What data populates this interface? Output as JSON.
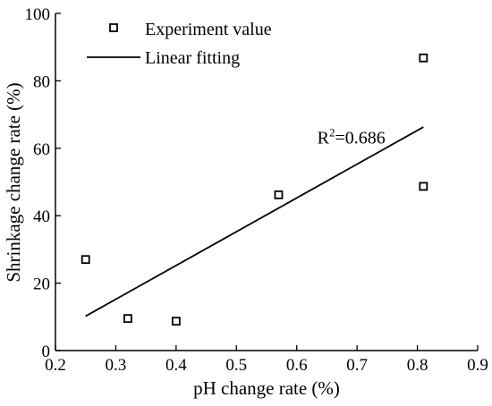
{
  "chart_data": {
    "type": "scatter",
    "title": "",
    "xlabel": "pH change rate (%)",
    "ylabel": "Shrinkage change rate (%)",
    "xlim": [
      0.2,
      0.9
    ],
    "ylim": [
      0,
      100
    ],
    "xticks": [
      0.2,
      0.3,
      0.4,
      0.5,
      0.6,
      0.7,
      0.8,
      0.9
    ],
    "yticks": [
      0,
      20,
      40,
      60,
      80,
      100
    ],
    "xtick_labels": [
      "0.2",
      "0.3",
      "0.4",
      "0.5",
      "0.6",
      "0.7",
      "0.8",
      "0.9"
    ],
    "ytick_labels": [
      "0",
      "20",
      "40",
      "60",
      "80",
      "100"
    ],
    "grid": false,
    "legend_position": "top-left",
    "series": [
      {
        "name": "Experiment value",
        "kind": "scatter",
        "marker": "open-square",
        "x": [
          0.25,
          0.32,
          0.4,
          0.57,
          0.81,
          0.81
        ],
        "y": [
          27,
          9.5,
          8.7,
          46.2,
          48.7,
          86.8
        ]
      },
      {
        "name": "Linear fitting",
        "kind": "line",
        "x": [
          0.25,
          0.81
        ],
        "y": [
          10.2,
          66.3
        ]
      }
    ],
    "annotation": {
      "prefix": "R",
      "superscript": "2",
      "suffix": "=0.686",
      "x": 0.72,
      "y": 64
    },
    "colors": {
      "axis": "#000000",
      "marker": "#000000",
      "line": "#000000"
    }
  }
}
